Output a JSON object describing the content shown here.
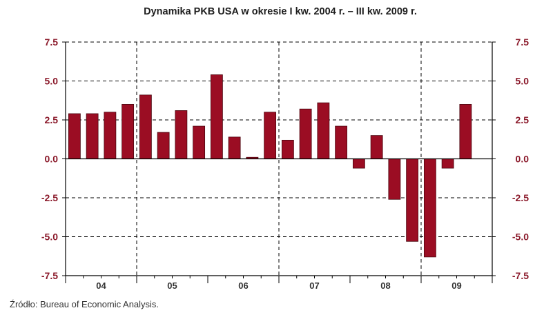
{
  "chart_data": {
    "type": "bar",
    "title": "Dynamika PKB USA w okresie I kw. 2004 r. – III kw. 2009 r.",
    "xlabel": "",
    "ylabel": "",
    "groups": [
      {
        "label": "04",
        "values": [
          2.9,
          2.9,
          3.0,
          3.5
        ]
      },
      {
        "label": "05",
        "values": [
          4.1,
          1.7,
          3.1,
          2.1
        ]
      },
      {
        "label": "06",
        "values": [
          5.4,
          1.4,
          0.1,
          3.0
        ]
      },
      {
        "label": "07",
        "values": [
          1.2,
          3.2,
          3.6,
          2.1
        ]
      },
      {
        "label": "08",
        "values": [
          -0.6,
          1.5,
          -2.6,
          -5.3
        ]
      },
      {
        "label": "09",
        "values": [
          -6.3,
          -0.6,
          3.5
        ]
      }
    ],
    "y_ticks": [
      7.5,
      5.0,
      2.5,
      0.0,
      -2.5,
      -5.0,
      -7.5
    ],
    "y_tick_labels": [
      "7.5",
      "5.0",
      "2.5",
      "0.0",
      "-2.5",
      "-5.0",
      "-7.5"
    ],
    "ylim": [
      -7.5,
      7.5
    ],
    "grid": true,
    "legend": "none",
    "source": "Źródło: Bureau of Economic Analysis.",
    "colors": {
      "bar": "#9b0d23",
      "bar_outline": "#4a0710",
      "tick_label": "#8b1a2b",
      "axis": "#000000"
    }
  }
}
